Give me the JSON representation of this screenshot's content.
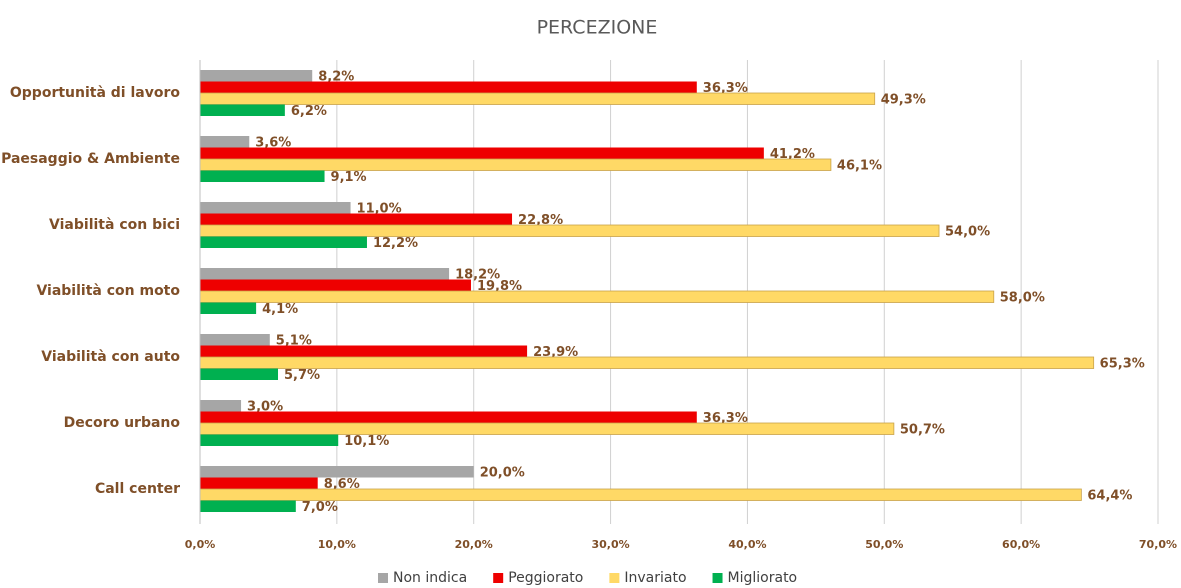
{
  "chart_data": {
    "type": "hbar",
    "title": "PERCEZIONE",
    "categories": [
      "Opportunità di lavoro",
      "Paesaggio & Ambiente",
      "Viabilità con bici",
      "Viabilità con moto",
      "Viabilità con auto",
      "Decoro urbano",
      "Call center"
    ],
    "series": [
      {
        "name": "Non indica",
        "color": "#a6a6a6",
        "values": [
          8.2,
          3.6,
          11.0,
          18.2,
          5.1,
          3.0,
          20.0
        ],
        "value_labels": [
          "8,2%",
          "3,6%",
          "11,0%",
          "18,2%",
          "5,1%",
          "3,0%",
          "20,0%"
        ]
      },
      {
        "name": "Peggiorato",
        "color": "#ee0000",
        "values": [
          36.3,
          41.2,
          22.8,
          19.8,
          23.9,
          36.3,
          8.6
        ],
        "value_labels": [
          "36,3%",
          "41,2%",
          "22,8%",
          "19,8%",
          "23,9%",
          "36,3%",
          "8,6%"
        ]
      },
      {
        "name": "Invariato",
        "color": "#ffd966",
        "values": [
          49.3,
          46.1,
          54.0,
          58.0,
          65.3,
          50.7,
          64.4
        ],
        "value_labels": [
          "49,3%",
          "46,1%",
          "54,0%",
          "58,0%",
          "65,3%",
          "50,7%",
          "64,4%"
        ]
      },
      {
        "name": "Migliorato",
        "color": "#00b050",
        "values": [
          6.2,
          9.1,
          12.2,
          4.1,
          5.7,
          10.1,
          7.0
        ],
        "value_labels": [
          "6,2%",
          "9,1%",
          "12,2%",
          "4,1%",
          "5,7%",
          "10,1%",
          "7,0%"
        ]
      }
    ],
    "xlim": [
      0,
      70
    ],
    "xticks": [
      {
        "value": 0,
        "label": "0,0%"
      },
      {
        "value": 10,
        "label": "10,0%"
      },
      {
        "value": 20,
        "label": "20,0%"
      },
      {
        "value": 30,
        "label": "30,0%"
      },
      {
        "value": 40,
        "label": "40,0%"
      },
      {
        "value": 50,
        "label": "50,0%"
      },
      {
        "value": 60,
        "label": "60,0%"
      },
      {
        "value": 70,
        "label": "70,0%"
      }
    ],
    "grid": true,
    "legend": "bottom"
  }
}
